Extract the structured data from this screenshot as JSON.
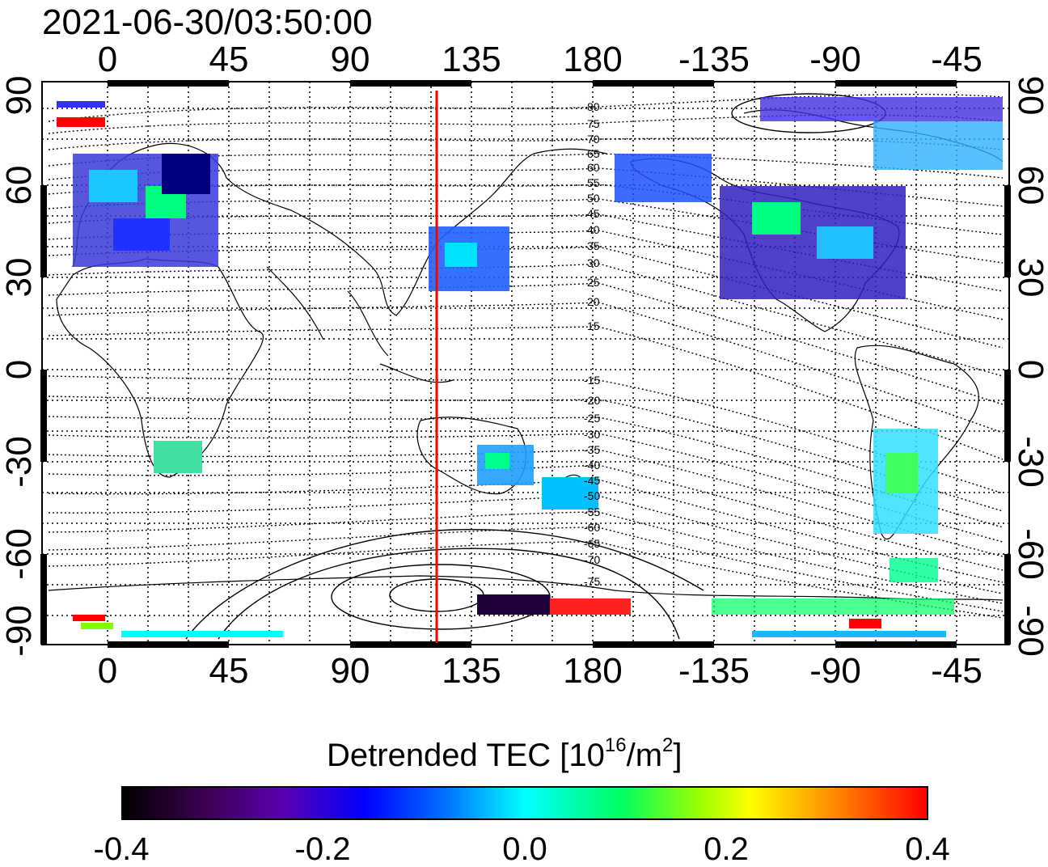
{
  "timestamp": "2021-06-30/03:50:00",
  "map": {
    "lon_ticks": [
      "0",
      "45",
      "90",
      "135",
      "180",
      "-135",
      "-90",
      "-45"
    ],
    "lat_ticks": [
      "90",
      "60",
      "30",
      "0",
      "-30",
      "-60",
      "-90"
    ],
    "mlat_north": [
      "80",
      "75",
      "70",
      "65",
      "60",
      "55",
      "50",
      "45",
      "40",
      "35",
      "30",
      "25",
      "20",
      "15"
    ],
    "mlat_south": [
      "-15",
      "-20",
      "-25",
      "-30",
      "-35",
      "-40",
      "-45",
      "-50",
      "-55",
      "-60",
      "-65",
      "-70",
      "-75"
    ],
    "marker_line_color": "#ff0000",
    "marker_longitude": 122
  },
  "colorbar": {
    "title": "Detrended TEC  [10",
    "title_sup": "16",
    "title_unit": "/m",
    "title_sup2": "2",
    "title_end": "]",
    "ticks": [
      "-0.4",
      "-0.2",
      "0.0",
      "0.2",
      "0.4"
    ],
    "colors": [
      "#000000",
      "#5a00b0",
      "#0000ff",
      "#00ffff",
      "#00ff60",
      "#ffff00",
      "#ff0000"
    ]
  }
}
